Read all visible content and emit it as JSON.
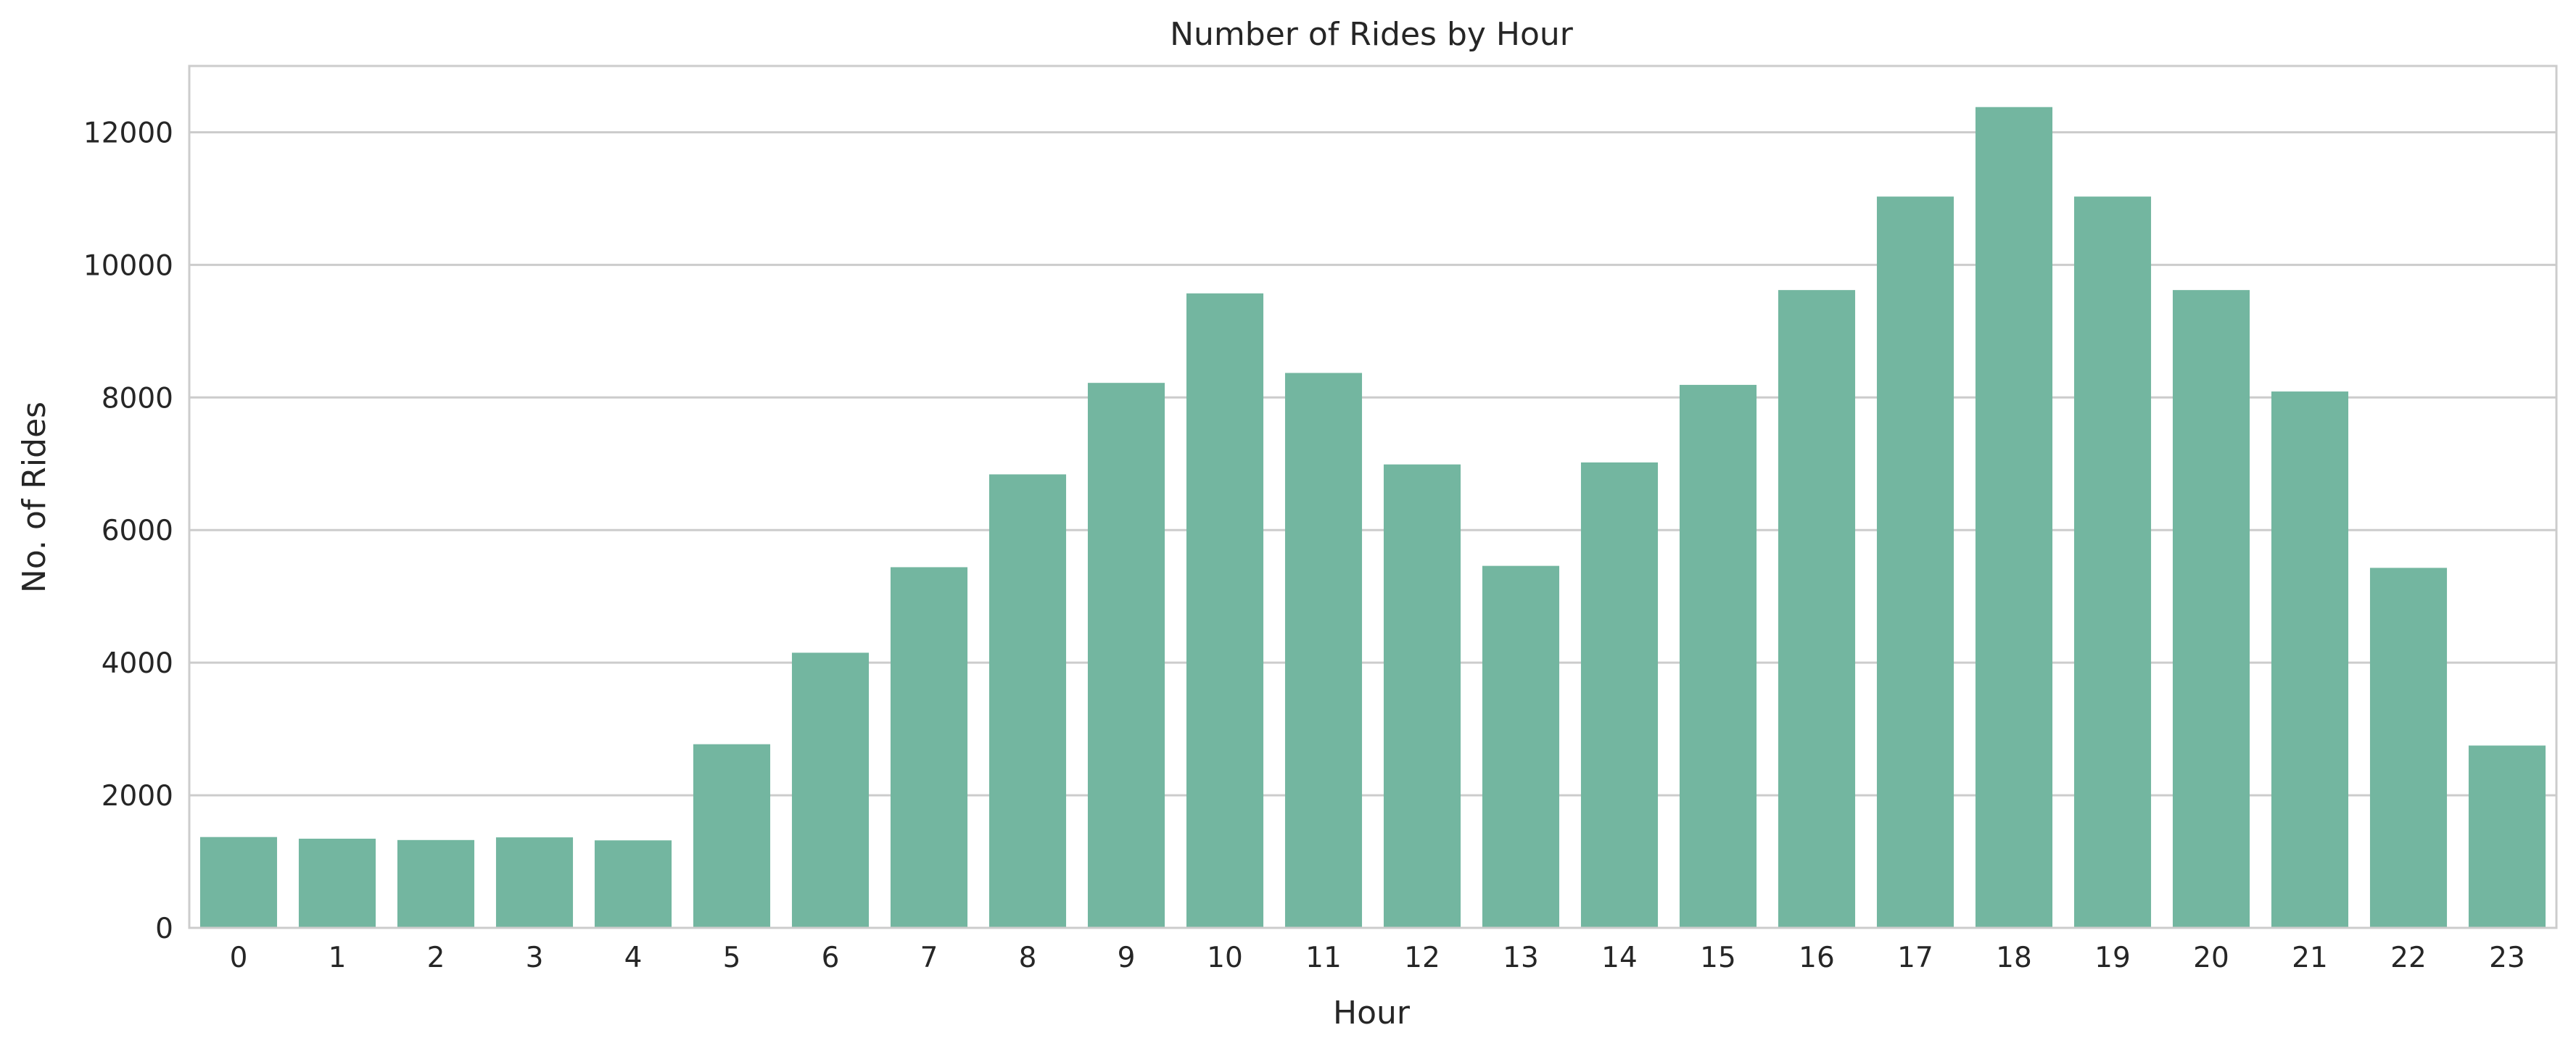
{
  "chart_data": {
    "type": "bar",
    "title": "Number of Rides by Hour",
    "xlabel": "Hour",
    "ylabel": "No. of Rides",
    "categories": [
      "0",
      "1",
      "2",
      "3",
      "4",
      "5",
      "6",
      "7",
      "8",
      "9",
      "10",
      "11",
      "12",
      "13",
      "14",
      "15",
      "16",
      "17",
      "18",
      "19",
      "20",
      "21",
      "22",
      "23"
    ],
    "values": [
      1370,
      1345,
      1325,
      1365,
      1320,
      2770,
      4150,
      5440,
      6840,
      8220,
      9570,
      8370,
      6990,
      5460,
      7020,
      8190,
      9620,
      11030,
      12380,
      11030,
      9620,
      8090,
      5430,
      2750
    ],
    "ylim": [
      0,
      13000
    ],
    "yticks": [
      0,
      2000,
      4000,
      6000,
      8000,
      10000,
      12000
    ],
    "ytick_labels": [
      "0",
      "2000",
      "4000",
      "6000",
      "8000",
      "10000",
      "12000"
    ],
    "grid": "horizontal",
    "bar_color": "#73b6a0",
    "grid_color": "#cccccc",
    "text_color": "#262626"
  }
}
